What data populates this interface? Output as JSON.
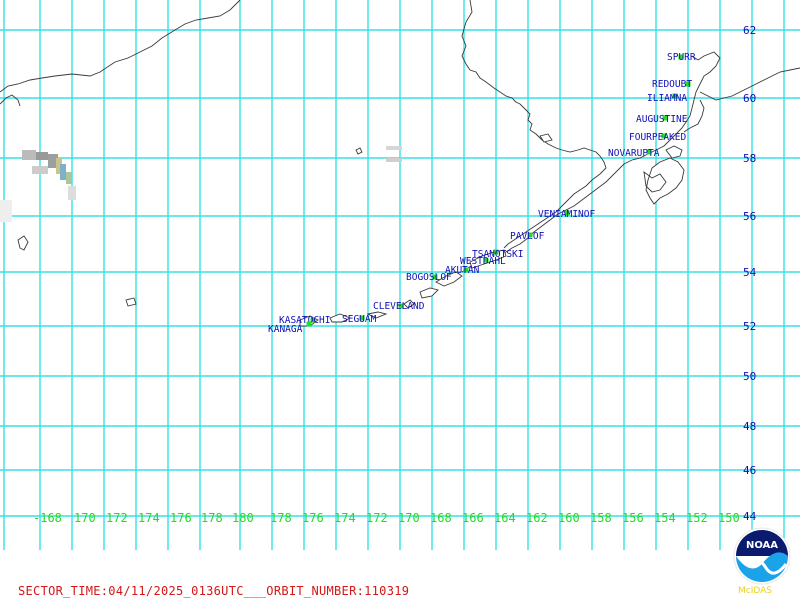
{
  "footer": {
    "sector_time_text": "SECTOR_TIME:04/11/2025_0136UTC___ORBIT_NUMBER:110319"
  },
  "logo": {
    "text": "NOAA",
    "subtext": "McIDAS"
  },
  "colors": {
    "grid": "#33e0e6",
    "latitude_labels": "#0b0bb5",
    "longitude_labels": "#22dd22",
    "volcano_labels": "#1010b8",
    "volcano_markers": "#22dd22",
    "footer_text": "#d21818"
  },
  "latitude_labels": [
    "62",
    "60",
    "58",
    "56",
    "54",
    "52",
    "50",
    "48",
    "46",
    "44"
  ],
  "longitude_labels": [
    "-168",
    "170",
    "172",
    "174",
    "176",
    "178",
    "180",
    "178",
    "176",
    "174",
    "172",
    "170",
    "168",
    "166",
    "164",
    "162",
    "160",
    "158",
    "156",
    "154",
    "152",
    "150"
  ],
  "volcanoes": [
    {
      "name": "SPURR"
    },
    {
      "name": "REDOUBT"
    },
    {
      "name": "ILIAMNA"
    },
    {
      "name": "AUGUSTINE"
    },
    {
      "name": "FOURPEAKED"
    },
    {
      "name": "NOVARUPTA"
    },
    {
      "name": "VENIAMINOF"
    },
    {
      "name": "PAVLOF"
    },
    {
      "name": "TSANOTSKI"
    },
    {
      "name": "WESTDAHL"
    },
    {
      "name": "AKUTAN"
    },
    {
      "name": "BOGOSLOF"
    },
    {
      "name": "CLEVELAND"
    },
    {
      "name": "KASATOCHI"
    },
    {
      "name": "SEGUAM"
    },
    {
      "name": "KANAGA"
    }
  ]
}
